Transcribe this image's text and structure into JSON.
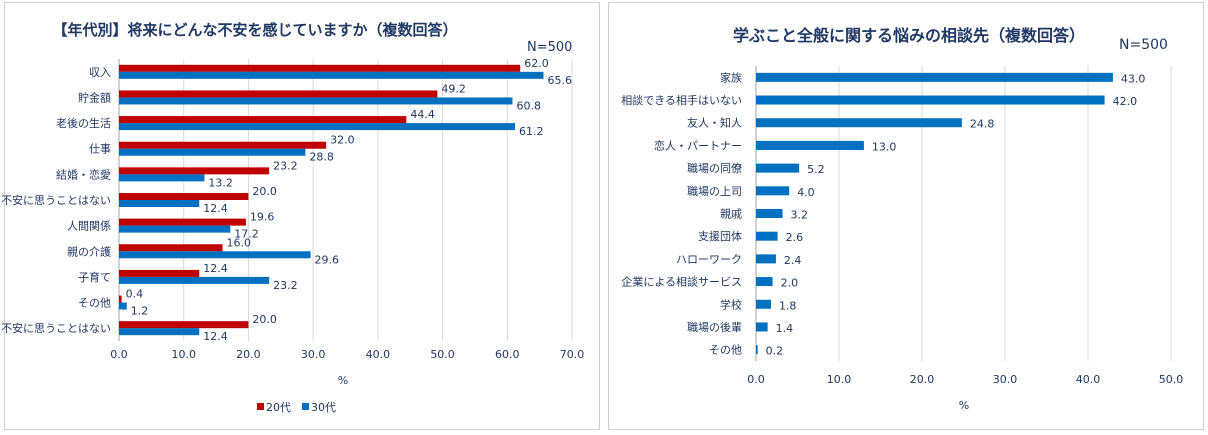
{
  "chart_data": [
    {
      "type": "bar",
      "orientation": "horizontal",
      "title": "【年代別】将来にどんな不安を感じていますか（複数回答）",
      "sample_size": "N=500",
      "xlabel": "%",
      "ylabel": "",
      "xlim": [
        0,
        70
      ],
      "xticks": [
        "0.0",
        "10.0",
        "20.0",
        "30.0",
        "40.0",
        "50.0",
        "60.0",
        "70.0"
      ],
      "legend_position": "bottom",
      "categories": [
        "収入",
        "貯金額",
        "老後の生活",
        "仕事",
        "結婚・恋愛",
        "不安に思うことはない",
        "人間関係",
        "親の介護",
        "子育て",
        "その他",
        "不安に思うことはない"
      ],
      "series": [
        {
          "name": "20代",
          "color": "#c00000",
          "values": [
            62.0,
            49.2,
            44.4,
            32.0,
            23.2,
            20.0,
            19.6,
            16.0,
            12.4,
            0.4,
            20.0
          ]
        },
        {
          "name": "30代",
          "color": "#0070c0",
          "values": [
            65.6,
            60.8,
            61.2,
            28.8,
            13.2,
            12.4,
            17.2,
            29.6,
            23.2,
            1.2,
            12.4
          ]
        }
      ]
    },
    {
      "type": "bar",
      "orientation": "horizontal",
      "title": "学ぶこと全般に関する悩みの相談先（複数回答）",
      "sample_size": "N=500",
      "xlabel": "%",
      "ylabel": "",
      "xlim": [
        0,
        50
      ],
      "xticks": [
        "0.0",
        "10.0",
        "20.0",
        "30.0",
        "40.0",
        "50.0"
      ],
      "categories": [
        "家族",
        "相談できる相手はいない",
        "友人・知人",
        "恋人・パートナー",
        "職場の同僚",
        "職場の上司",
        "親戚",
        "支援団体",
        "ハローワーク",
        "企業による相談サービス",
        "学校",
        "職場の後輩",
        "その他"
      ],
      "series": [
        {
          "name": "",
          "color": "#0070c0",
          "values": [
            43.0,
            42.0,
            24.8,
            13.0,
            5.2,
            4.0,
            3.2,
            2.6,
            2.4,
            2.0,
            1.8,
            1.4,
            0.2
          ]
        }
      ]
    }
  ]
}
